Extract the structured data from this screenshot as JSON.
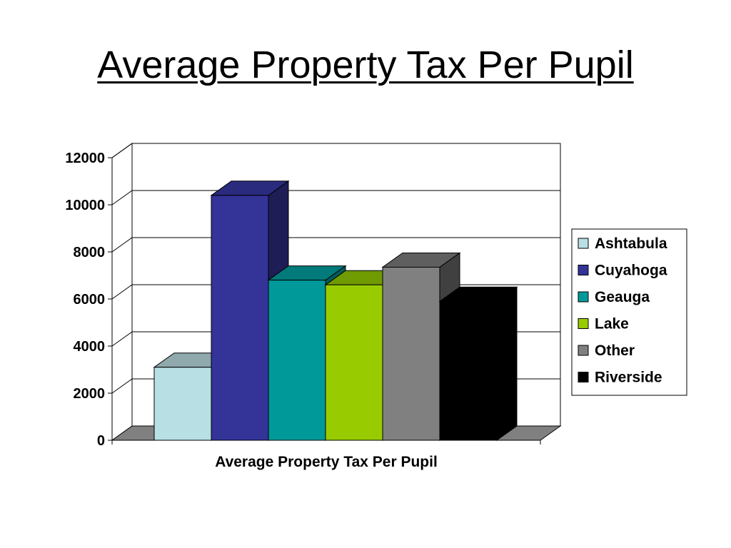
{
  "page": {
    "title": "Average Property Tax Per Pupil"
  },
  "chart_data": {
    "type": "bar",
    "style": "3d-clustered-column",
    "title": "Average Property Tax Per Pupil",
    "categories": [
      "Average Property Tax Per Pupil"
    ],
    "xlabel": "",
    "ylabel": "",
    "ylim": [
      0,
      12000
    ],
    "yticks": [
      0,
      2000,
      4000,
      6000,
      8000,
      10000,
      12000
    ],
    "grid": true,
    "legend_position": "right",
    "series": [
      {
        "name": "Ashtabula",
        "values": [
          3100
        ],
        "color": "#b8dfe4",
        "top_color": "#8fa9ad",
        "side_color": "#6d8487"
      },
      {
        "name": "Cuyahoga",
        "values": [
          10400
        ],
        "color": "#343398",
        "top_color": "#2a2a7e",
        "side_color": "#1e1d55"
      },
      {
        "name": "Geauga",
        "values": [
          6800
        ],
        "color": "#009999",
        "top_color": "#007a7a",
        "side_color": "#005c5c"
      },
      {
        "name": "Lake",
        "values": [
          6600
        ],
        "color": "#99cc00",
        "top_color": "#6f9a00",
        "side_color": "#557500"
      },
      {
        "name": "Other",
        "values": [
          7350
        ],
        "color": "#808080",
        "top_color": "#5f5f5f",
        "side_color": "#404040"
      },
      {
        "name": "Riverside",
        "values": [
          5900
        ],
        "color": "#000000",
        "top_color": "#000000",
        "side_color": "#000000"
      }
    ]
  }
}
